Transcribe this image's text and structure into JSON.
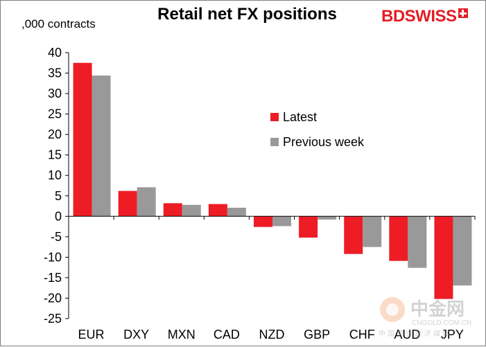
{
  "brand": {
    "bd": "BD",
    "swiss": "SWISS"
  },
  "chart_data": {
    "type": "bar",
    "title": "Retail net FX positions",
    "ylabel": ",000 contracts",
    "categories": [
      "EUR",
      "DXY",
      "MXN",
      "CAD",
      "NZD",
      "GBP",
      "CHF",
      "AUD",
      "JPY"
    ],
    "series": [
      {
        "name": "Latest",
        "color": "#ee1c25",
        "values": [
          37.5,
          6.2,
          3.2,
          3.0,
          -2.6,
          -5.2,
          -9.2,
          -10.9,
          -20.2
        ]
      },
      {
        "name": "Previous week",
        "color": "#999999",
        "values": [
          34.4,
          7.1,
          2.8,
          2.1,
          -2.4,
          -0.8,
          -7.5,
          -12.6,
          -16.9
        ]
      }
    ],
    "ylim": [
      -25,
      40
    ],
    "yticks": [
      40,
      35,
      30,
      25,
      20,
      15,
      10,
      5,
      0,
      -5,
      -10,
      -15,
      -20,
      -25
    ],
    "grid": false,
    "legend_position": "center-right"
  },
  "watermark": {
    "name": "中金网",
    "url": "CNGOLD.COM.CN",
    "sub": "中 国 黄 金 经 济 媒 体"
  }
}
